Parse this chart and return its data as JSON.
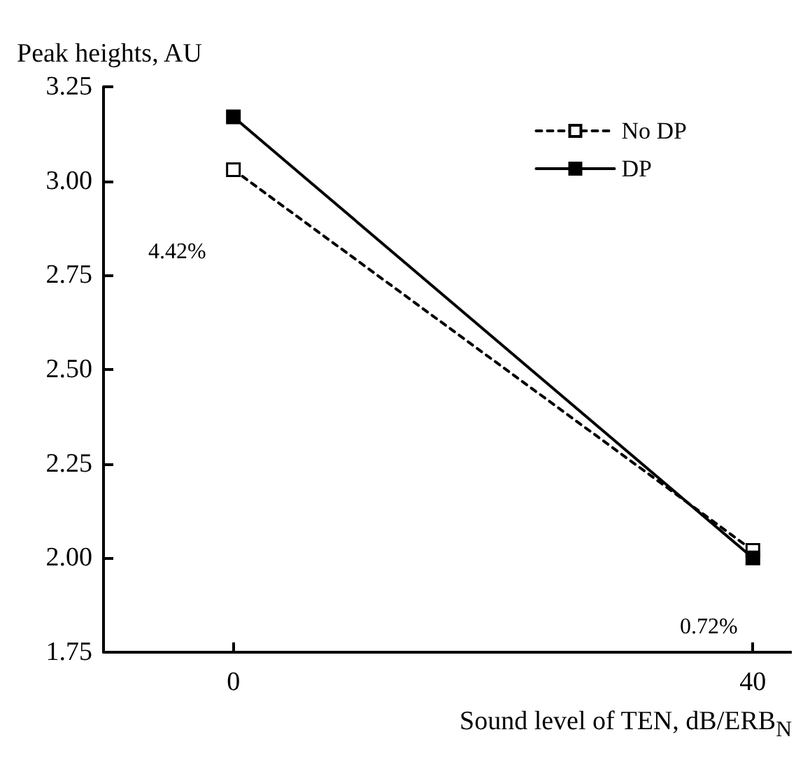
{
  "chart_data": {
    "type": "line",
    "ylabel": "Peak heights, AU",
    "xlabel": "Sound level of TEN, dB/ERB$_{N}$",
    "x": [
      0,
      40
    ],
    "series": [
      {
        "name": "No DP",
        "color": "#000000",
        "values": [
          3.03,
          2.02
        ],
        "line_style": "dashed"
      },
      {
        "name": "DP",
        "color": "#000000",
        "values": [
          3.17,
          2.0
        ],
        "line_style": "solid"
      }
    ],
    "xlim": [
      -10,
      43
    ],
    "xticks": [
      0,
      40
    ],
    "ylim": [
      1.75,
      3.25
    ],
    "yticks": [
      1.75,
      {
        "value": 2,
        "label": "2.00"
      },
      2.25,
      {
        "value": 2.5,
        "label": "2.50"
      },
      2.75,
      {
        "value": 3,
        "label": "3.00"
      },
      3.25
    ],
    "marker": "square",
    "grid": false,
    "legend": "top right",
    "annotations": [
      "4.42%",
      "0.72%"
    ]
  }
}
